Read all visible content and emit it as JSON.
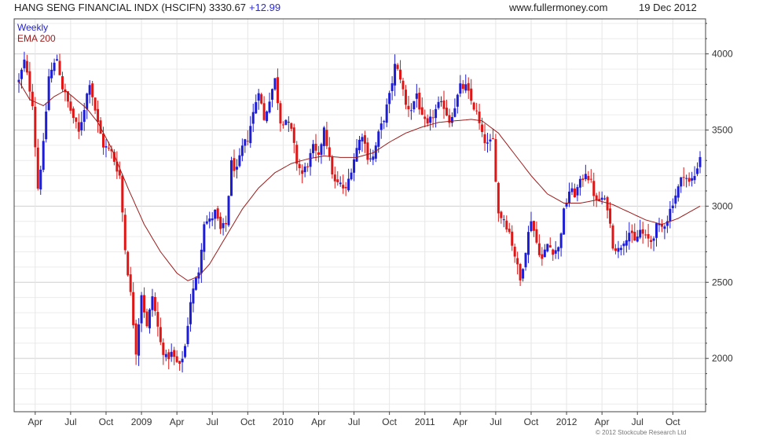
{
  "header": {
    "title": "HANG SENG FINANCIAL INDX (HSCIFN) 3330.67",
    "change": "+12.99",
    "site": "www.fullermoney.com",
    "date": "19 Dec 2012"
  },
  "legend": {
    "series1": "Weekly",
    "series2": "EMA 200"
  },
  "copyright": "© 2012 Stockcube Research Ltd",
  "colors": {
    "up": "#1d1dd6",
    "down": "#e01616",
    "ema": "#9b1b1b",
    "grid": "#d7d7d7",
    "axis": "#444444"
  },
  "chart_data": {
    "type": "candlestick",
    "title": "HANG SENG FINANCIAL INDX (HSCIFN) 3330.67 +12.99",
    "period": "Weekly",
    "ylim": [
      1650,
      4230
    ],
    "y_ticks": [
      2000,
      2500,
      3000,
      3500,
      4000
    ],
    "y_tick_labels": [
      "2000",
      "2500",
      "3000",
      "3500",
      "4000"
    ],
    "x_tick_labels": [
      "Apr",
      "Jul",
      "Oct",
      "2009",
      "Apr",
      "Jul",
      "Oct",
      "2010",
      "Apr",
      "Jul",
      "Oct",
      "2011",
      "Apr",
      "Jul",
      "Oct",
      "2012",
      "Apr",
      "Jul",
      "Oct"
    ],
    "x_tick_weeks": [
      6,
      19,
      32,
      45,
      58,
      71,
      84,
      97,
      110,
      123,
      136,
      149,
      162,
      175,
      188,
      201,
      214,
      227,
      240
    ],
    "close_anchors": [
      [
        0,
        3820
      ],
      [
        2,
        3950
      ],
      [
        5,
        3680
      ],
      [
        7,
        3120
      ],
      [
        9,
        3400
      ],
      [
        11,
        3850
      ],
      [
        14,
        3970
      ],
      [
        16,
        3780
      ],
      [
        18,
        3680
      ],
      [
        22,
        3480
      ],
      [
        26,
        3820
      ],
      [
        29,
        3540
      ],
      [
        31,
        3400
      ],
      [
        34,
        3350
      ],
      [
        37,
        3200
      ],
      [
        39,
        2720
      ],
      [
        41,
        2420
      ],
      [
        43,
        2050
      ],
      [
        45,
        2430
      ],
      [
        47,
        2200
      ],
      [
        49,
        2410
      ],
      [
        52,
        2100
      ],
      [
        54,
        2000
      ],
      [
        56,
        2030
      ],
      [
        59,
        1940
      ],
      [
        61,
        2080
      ],
      [
        63,
        2380
      ],
      [
        66,
        2580
      ],
      [
        68,
        2900
      ],
      [
        70,
        2900
      ],
      [
        72,
        2960
      ],
      [
        74,
        2840
      ],
      [
        76,
        2880
      ],
      [
        78,
        3280
      ],
      [
        80,
        3230
      ],
      [
        82,
        3380
      ],
      [
        84,
        3450
      ],
      [
        86,
        3610
      ],
      [
        88,
        3770
      ],
      [
        90,
        3560
      ],
      [
        92,
        3710
      ],
      [
        94,
        3830
      ],
      [
        96,
        3560
      ],
      [
        98,
        3570
      ],
      [
        100,
        3490
      ],
      [
        102,
        3290
      ],
      [
        104,
        3210
      ],
      [
        106,
        3280
      ],
      [
        108,
        3380
      ],
      [
        110,
        3310
      ],
      [
        112,
        3530
      ],
      [
        114,
        3300
      ],
      [
        116,
        3150
      ],
      [
        118,
        3140
      ],
      [
        120,
        3100
      ],
      [
        122,
        3250
      ],
      [
        124,
        3380
      ],
      [
        126,
        3480
      ],
      [
        128,
        3330
      ],
      [
        130,
        3320
      ],
      [
        132,
        3470
      ],
      [
        134,
        3580
      ],
      [
        136,
        3720
      ],
      [
        138,
        3920
      ],
      [
        140,
        3850
      ],
      [
        142,
        3660
      ],
      [
        144,
        3640
      ],
      [
        146,
        3740
      ],
      [
        148,
        3570
      ],
      [
        150,
        3520
      ],
      [
        152,
        3600
      ],
      [
        154,
        3660
      ],
      [
        156,
        3660
      ],
      [
        158,
        3560
      ],
      [
        160,
        3660
      ],
      [
        162,
        3780
      ],
      [
        164,
        3780
      ],
      [
        166,
        3690
      ],
      [
        168,
        3610
      ],
      [
        170,
        3460
      ],
      [
        172,
        3400
      ],
      [
        174,
        3430
      ],
      [
        176,
        2950
      ],
      [
        178,
        2920
      ],
      [
        180,
        2830
      ],
      [
        182,
        2680
      ],
      [
        184,
        2510
      ],
      [
        186,
        2720
      ],
      [
        188,
        2920
      ],
      [
        190,
        2760
      ],
      [
        192,
        2650
      ],
      [
        194,
        2750
      ],
      [
        196,
        2710
      ],
      [
        198,
        2720
      ],
      [
        200,
        2960
      ],
      [
        202,
        3100
      ],
      [
        204,
        3080
      ],
      [
        206,
        3150
      ],
      [
        208,
        3230
      ],
      [
        210,
        3150
      ],
      [
        212,
        3020
      ],
      [
        214,
        3050
      ],
      [
        216,
        3000
      ],
      [
        218,
        2750
      ],
      [
        220,
        2710
      ],
      [
        222,
        2780
      ],
      [
        224,
        2830
      ],
      [
        226,
        2760
      ],
      [
        228,
        2840
      ],
      [
        230,
        2790
      ],
      [
        232,
        2770
      ],
      [
        234,
        2860
      ],
      [
        236,
        2860
      ],
      [
        238,
        2920
      ],
      [
        240,
        3030
      ],
      [
        242,
        3120
      ],
      [
        244,
        3220
      ],
      [
        246,
        3150
      ],
      [
        248,
        3200
      ],
      [
        250,
        3330
      ]
    ],
    "ema200_anchors": [
      [
        0,
        3820
      ],
      [
        4,
        3700
      ],
      [
        9,
        3660
      ],
      [
        13,
        3720
      ],
      [
        17,
        3760
      ],
      [
        21,
        3700
      ],
      [
        25,
        3640
      ],
      [
        29,
        3550
      ],
      [
        34,
        3380
      ],
      [
        40,
        3120
      ],
      [
        46,
        2880
      ],
      [
        52,
        2700
      ],
      [
        58,
        2560
      ],
      [
        62,
        2510
      ],
      [
        66,
        2540
      ],
      [
        70,
        2620
      ],
      [
        76,
        2800
      ],
      [
        82,
        2980
      ],
      [
        88,
        3120
      ],
      [
        94,
        3220
      ],
      [
        100,
        3280
      ],
      [
        106,
        3310
      ],
      [
        112,
        3330
      ],
      [
        118,
        3320
      ],
      [
        124,
        3320
      ],
      [
        130,
        3350
      ],
      [
        136,
        3420
      ],
      [
        142,
        3480
      ],
      [
        148,
        3520
      ],
      [
        154,
        3550
      ],
      [
        160,
        3560
      ],
      [
        166,
        3570
      ],
      [
        170,
        3560
      ],
      [
        176,
        3480
      ],
      [
        182,
        3340
      ],
      [
        188,
        3200
      ],
      [
        194,
        3080
      ],
      [
        200,
        3020
      ],
      [
        206,
        3020
      ],
      [
        212,
        3040
      ],
      [
        218,
        3010
      ],
      [
        224,
        2960
      ],
      [
        230,
        2910
      ],
      [
        236,
        2880
      ],
      [
        242,
        2920
      ],
      [
        246,
        2960
      ],
      [
        250,
        3000
      ]
    ]
  }
}
